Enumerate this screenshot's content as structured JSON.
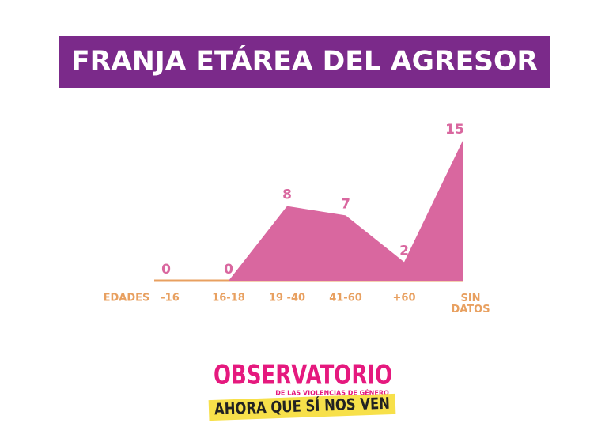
{
  "chart_data": {
    "type": "area",
    "title": "FRANJA ETÁREA DEL AGRESOR",
    "x_label": "EDADES",
    "categories": [
      "-16",
      "16-18",
      "19 -40",
      "41-60",
      "+60",
      "SIN DATOS"
    ],
    "values": [
      0,
      0,
      8,
      7,
      2,
      15
    ],
    "color": "#d9679f",
    "ylim": [
      0,
      15
    ]
  },
  "logo": {
    "title": "OBSERVATORIO",
    "subtitle": "DE LAS VIOLENCIAS DE GÉNERO",
    "slogan": "AHORA QUE SÍ NOS VEN"
  }
}
